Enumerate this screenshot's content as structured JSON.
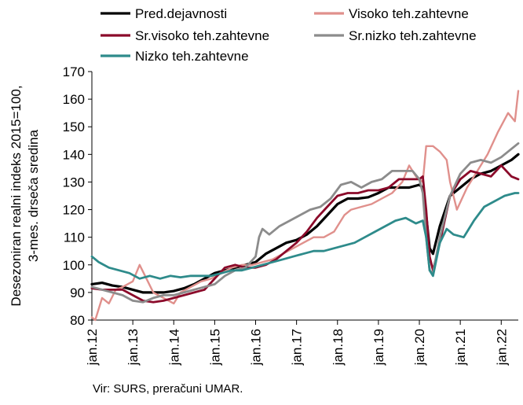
{
  "chart_data": {
    "type": "line",
    "ylabel_lines": [
      "Desezoniran realni indeks 2015=100,",
      "3-mes. drseča sredina"
    ],
    "ylim": [
      80,
      170
    ],
    "yticks": [
      80,
      90,
      100,
      110,
      120,
      130,
      140,
      150,
      160,
      170
    ],
    "x_range": [
      "2012-01",
      "2022-06"
    ],
    "xticks": [
      "jan.12",
      "jan.13",
      "jan.14",
      "jan.15",
      "jan.16",
      "jan.17",
      "jan.18",
      "jan.19",
      "jan.20",
      "jan.21",
      "jan.22"
    ],
    "grid": false,
    "legend_position": "top",
    "series": [
      {
        "name": "Pred.dejavnosti",
        "color": "#000000",
        "width": 3.2,
        "points": [
          [
            "2012-01",
            93
          ],
          [
            "2012-04",
            93.5
          ],
          [
            "2012-07",
            92.5
          ],
          [
            "2012-10",
            92
          ],
          [
            "2013-01",
            91
          ],
          [
            "2013-04",
            90
          ],
          [
            "2013-07",
            90
          ],
          [
            "2013-10",
            90
          ],
          [
            "2014-01",
            90.5
          ],
          [
            "2014-04",
            91.5
          ],
          [
            "2014-07",
            93
          ],
          [
            "2014-10",
            95
          ],
          [
            "2015-01",
            97
          ],
          [
            "2015-04",
            98
          ],
          [
            "2015-07",
            99
          ],
          [
            "2015-10",
            100
          ],
          [
            "2016-01",
            101
          ],
          [
            "2016-04",
            104
          ],
          [
            "2016-07",
            106
          ],
          [
            "2016-10",
            108
          ],
          [
            "2017-01",
            109
          ],
          [
            "2017-04",
            111
          ],
          [
            "2017-07",
            114
          ],
          [
            "2017-10",
            118
          ],
          [
            "2018-01",
            122
          ],
          [
            "2018-04",
            124
          ],
          [
            "2018-07",
            124
          ],
          [
            "2018-10",
            124.5
          ],
          [
            "2019-01",
            126
          ],
          [
            "2019-04",
            128
          ],
          [
            "2019-07",
            128
          ],
          [
            "2019-10",
            128
          ],
          [
            "2020-01",
            129
          ],
          [
            "2020-02",
            128
          ],
          [
            "2020-03",
            118
          ],
          [
            "2020-04",
            106
          ],
          [
            "2020-05",
            104
          ],
          [
            "2020-07",
            114
          ],
          [
            "2020-10",
            125
          ],
          [
            "2021-01",
            128
          ],
          [
            "2021-04",
            131
          ],
          [
            "2021-07",
            133
          ],
          [
            "2021-10",
            134
          ],
          [
            "2022-01",
            136
          ],
          [
            "2022-04",
            138
          ],
          [
            "2022-06",
            140
          ]
        ]
      },
      {
        "name": "Visoko teh.zahtevne",
        "color": "#e0908c",
        "width": 2.4,
        "points": [
          [
            "2012-01",
            81
          ],
          [
            "2012-02",
            80
          ],
          [
            "2012-04",
            88
          ],
          [
            "2012-06",
            86
          ],
          [
            "2012-08",
            91
          ],
          [
            "2012-10",
            92
          ],
          [
            "2013-01",
            94
          ],
          [
            "2013-03",
            100
          ],
          [
            "2013-05",
            95
          ],
          [
            "2013-07",
            90
          ],
          [
            "2013-10",
            88
          ],
          [
            "2014-01",
            86
          ],
          [
            "2014-03",
            90
          ],
          [
            "2014-06",
            92
          ],
          [
            "2014-09",
            94
          ],
          [
            "2014-12",
            95
          ],
          [
            "2015-03",
            97
          ],
          [
            "2015-06",
            99
          ],
          [
            "2015-09",
            100
          ],
          [
            "2015-12",
            100
          ],
          [
            "2016-03",
            101
          ],
          [
            "2016-06",
            102
          ],
          [
            "2016-09",
            104
          ],
          [
            "2016-12",
            106
          ],
          [
            "2017-03",
            108
          ],
          [
            "2017-06",
            110
          ],
          [
            "2017-09",
            110
          ],
          [
            "2017-12",
            112
          ],
          [
            "2018-03",
            118
          ],
          [
            "2018-05",
            120
          ],
          [
            "2018-08",
            121
          ],
          [
            "2018-11",
            122
          ],
          [
            "2019-02",
            124
          ],
          [
            "2019-05",
            126
          ],
          [
            "2019-08",
            130
          ],
          [
            "2019-10",
            136
          ],
          [
            "2019-12",
            132
          ],
          [
            "2020-02",
            130
          ],
          [
            "2020-03",
            143
          ],
          [
            "2020-05",
            143
          ],
          [
            "2020-07",
            141
          ],
          [
            "2020-09",
            138
          ],
          [
            "2020-10",
            130
          ],
          [
            "2020-12",
            120
          ],
          [
            "2021-03",
            128
          ],
          [
            "2021-06",
            134
          ],
          [
            "2021-09",
            140
          ],
          [
            "2021-12",
            148
          ],
          [
            "2022-03",
            155
          ],
          [
            "2022-05",
            152
          ],
          [
            "2022-06",
            163
          ]
        ]
      },
      {
        "name": "Sr.visoko teh.zahtevne",
        "color": "#8b0a2a",
        "width": 2.8,
        "points": [
          [
            "2012-01",
            91.5
          ],
          [
            "2012-04",
            91
          ],
          [
            "2012-07",
            91
          ],
          [
            "2012-10",
            91
          ],
          [
            "2013-01",
            89
          ],
          [
            "2013-04",
            87
          ],
          [
            "2013-07",
            86.5
          ],
          [
            "2013-10",
            87
          ],
          [
            "2014-01",
            88
          ],
          [
            "2014-04",
            89
          ],
          [
            "2014-07",
            90
          ],
          [
            "2014-10",
            91
          ],
          [
            "2015-01",
            95
          ],
          [
            "2015-04",
            99
          ],
          [
            "2015-07",
            100
          ],
          [
            "2015-10",
            99
          ],
          [
            "2016-01",
            99
          ],
          [
            "2016-04",
            100
          ],
          [
            "2016-07",
            102
          ],
          [
            "2016-10",
            105
          ],
          [
            "2017-01",
            108
          ],
          [
            "2017-04",
            112
          ],
          [
            "2017-07",
            117
          ],
          [
            "2017-10",
            121
          ],
          [
            "2018-01",
            125
          ],
          [
            "2018-04",
            126
          ],
          [
            "2018-07",
            126
          ],
          [
            "2018-10",
            127
          ],
          [
            "2019-01",
            127
          ],
          [
            "2019-04",
            128
          ],
          [
            "2019-07",
            131
          ],
          [
            "2019-10",
            131
          ],
          [
            "2020-01",
            131
          ],
          [
            "2020-02",
            132
          ],
          [
            "2020-03",
            120
          ],
          [
            "2020-04",
            103
          ],
          [
            "2020-05",
            98
          ],
          [
            "2020-07",
            108
          ],
          [
            "2020-10",
            125
          ],
          [
            "2021-01",
            131
          ],
          [
            "2021-04",
            134
          ],
          [
            "2021-07",
            133
          ],
          [
            "2021-10",
            132
          ],
          [
            "2022-01",
            136
          ],
          [
            "2022-04",
            132
          ],
          [
            "2022-06",
            131
          ]
        ]
      },
      {
        "name": "Sr.nizko teh.zahtevne",
        "color": "#8c8c8c",
        "width": 2.8,
        "points": [
          [
            "2012-01",
            92
          ],
          [
            "2012-04",
            91
          ],
          [
            "2012-07",
            90
          ],
          [
            "2012-10",
            89
          ],
          [
            "2013-01",
            87
          ],
          [
            "2013-04",
            86.5
          ],
          [
            "2013-07",
            88
          ],
          [
            "2013-10",
            89
          ],
          [
            "2014-01",
            89
          ],
          [
            "2014-04",
            90
          ],
          [
            "2014-07",
            91
          ],
          [
            "2014-10",
            92
          ],
          [
            "2015-01",
            93
          ],
          [
            "2015-04",
            96
          ],
          [
            "2015-07",
            98
          ],
          [
            "2015-10",
            99
          ],
          [
            "2016-01",
            103
          ],
          [
            "2016-02",
            110
          ],
          [
            "2016-03",
            113
          ],
          [
            "2016-05",
            111
          ],
          [
            "2016-08",
            114
          ],
          [
            "2016-11",
            116
          ],
          [
            "2017-02",
            118
          ],
          [
            "2017-05",
            120
          ],
          [
            "2017-08",
            121
          ],
          [
            "2017-11",
            124
          ],
          [
            "2018-02",
            129
          ],
          [
            "2018-05",
            130
          ],
          [
            "2018-08",
            128
          ],
          [
            "2018-11",
            130
          ],
          [
            "2019-02",
            131
          ],
          [
            "2019-05",
            134
          ],
          [
            "2019-08",
            134
          ],
          [
            "2019-11",
            134
          ],
          [
            "2020-01",
            131
          ],
          [
            "2020-02",
            126
          ],
          [
            "2020-03",
            110
          ],
          [
            "2020-04",
            98
          ],
          [
            "2020-05",
            97
          ],
          [
            "2020-07",
            110
          ],
          [
            "2020-10",
            125
          ],
          [
            "2021-01",
            133
          ],
          [
            "2021-04",
            137
          ],
          [
            "2021-07",
            138
          ],
          [
            "2021-10",
            137
          ],
          [
            "2022-01",
            139
          ],
          [
            "2022-04",
            142
          ],
          [
            "2022-06",
            144
          ]
        ]
      },
      {
        "name": "Nizko teh.zahtevne",
        "color": "#2e8b8b",
        "width": 2.8,
        "points": [
          [
            "2012-01",
            103
          ],
          [
            "2012-03",
            101
          ],
          [
            "2012-06",
            99
          ],
          [
            "2012-09",
            98
          ],
          [
            "2012-12",
            97
          ],
          [
            "2013-03",
            95
          ],
          [
            "2013-06",
            96
          ],
          [
            "2013-09",
            95
          ],
          [
            "2013-12",
            96
          ],
          [
            "2014-03",
            95.5
          ],
          [
            "2014-06",
            96
          ],
          [
            "2014-09",
            96
          ],
          [
            "2014-12",
            96
          ],
          [
            "2015-03",
            97
          ],
          [
            "2015-06",
            98
          ],
          [
            "2015-09",
            98
          ],
          [
            "2015-12",
            99
          ],
          [
            "2016-03",
            100
          ],
          [
            "2016-06",
            101
          ],
          [
            "2016-09",
            102
          ],
          [
            "2016-12",
            103
          ],
          [
            "2017-03",
            104
          ],
          [
            "2017-06",
            105
          ],
          [
            "2017-09",
            105
          ],
          [
            "2017-12",
            106
          ],
          [
            "2018-03",
            107
          ],
          [
            "2018-06",
            108
          ],
          [
            "2018-09",
            110
          ],
          [
            "2018-12",
            112
          ],
          [
            "2019-03",
            114
          ],
          [
            "2019-06",
            116
          ],
          [
            "2019-09",
            117
          ],
          [
            "2019-12",
            115
          ],
          [
            "2020-02",
            116
          ],
          [
            "2020-03",
            110
          ],
          [
            "2020-04",
            98
          ],
          [
            "2020-05",
            96
          ],
          [
            "2020-07",
            108
          ],
          [
            "2020-09",
            113
          ],
          [
            "2020-11",
            111
          ],
          [
            "2021-02",
            110
          ],
          [
            "2021-05",
            116
          ],
          [
            "2021-08",
            121
          ],
          [
            "2021-11",
            123
          ],
          [
            "2022-02",
            125
          ],
          [
            "2022-05",
            126
          ],
          [
            "2022-06",
            126
          ]
        ]
      }
    ]
  },
  "source": "Vir: SURS, preračuni UMAR."
}
